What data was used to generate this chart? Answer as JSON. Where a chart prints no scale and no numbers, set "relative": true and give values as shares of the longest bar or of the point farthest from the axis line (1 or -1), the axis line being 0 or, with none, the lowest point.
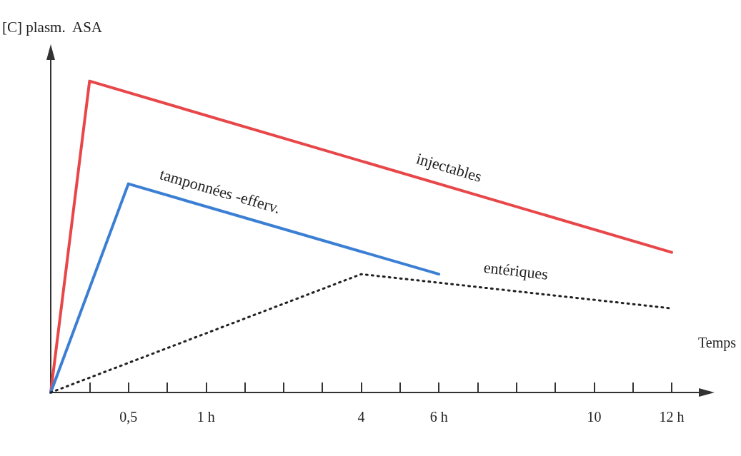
{
  "chart_data": {
    "type": "line",
    "relative": true,
    "ylabel": "[C] plasm.  ASA",
    "xlabel": "Temps",
    "categories": [
      null,
      null,
      "0,5",
      null,
      "1 h",
      null,
      null,
      null,
      "4",
      null,
      "6 h",
      null,
      null,
      null,
      "10",
      null,
      "12 h"
    ],
    "series": [
      {
        "name": "injectables",
        "color": "#e8474a",
        "line_style": "solid",
        "values": [
          0,
          1,
          null,
          null,
          null,
          null,
          null,
          null,
          null,
          null,
          null,
          null,
          null,
          null,
          null,
          null,
          0.45
        ]
      },
      {
        "name": "tamponnées -efferv.",
        "color": "#3b7fd4",
        "line_style": "solid",
        "values": [
          0,
          null,
          0.67,
          null,
          null,
          null,
          null,
          null,
          null,
          null,
          0.38,
          null,
          null,
          null,
          null,
          null,
          null
        ]
      },
      {
        "name": "entériques",
        "color": "#222222",
        "line_style": "dotted",
        "values": [
          0,
          null,
          null,
          null,
          null,
          null,
          null,
          null,
          0.38,
          null,
          null,
          null,
          null,
          null,
          null,
          null,
          0.27
        ]
      }
    ],
    "grid": false,
    "legend": false,
    "marker": "none"
  }
}
